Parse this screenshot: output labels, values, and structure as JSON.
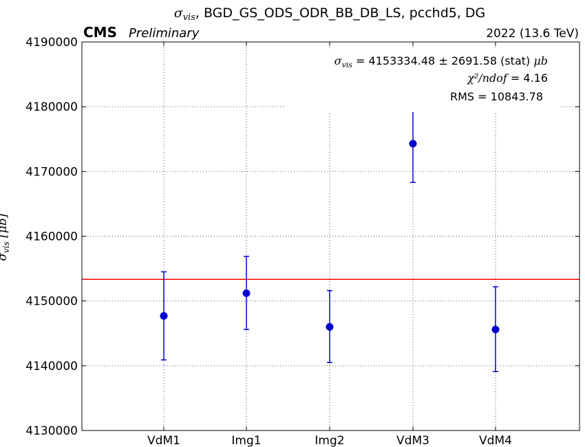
{
  "chart_data": {
    "type": "scatter",
    "title_symbol": "σ",
    "title_symbol_sub": "vis",
    "title_rest": ", BGD_GS_ODS_ODR_BB_DB_LS, pcchd5, DG",
    "cms_label": "CMS",
    "cms_sublabel": "Preliminary",
    "energy_label": "2022 (13.6 TeV)",
    "ylabel_symbol": "σ",
    "ylabel_sub": "vis",
    "ylabel_unit": "[μb]",
    "ylim": [
      4130000,
      4190000
    ],
    "yticks": [
      4130000,
      4140000,
      4150000,
      4160000,
      4170000,
      4180000,
      4190000
    ],
    "ytick_labels": [
      "4130000",
      "4140000",
      "4150000",
      "4160000",
      "4170000",
      "4180000",
      "4190000"
    ],
    "categories": [
      "VdM1",
      "Img1",
      "Img2",
      "VdM3",
      "VdM4"
    ],
    "values": [
      4147700,
      4151200,
      4146000,
      4174300,
      4145600
    ],
    "err_low": [
      4140900,
      4145600,
      4140500,
      4168300,
      4139100
    ],
    "err_high": [
      4154500,
      4156900,
      4151600,
      4179700,
      4152200
    ],
    "mean_line": 4153334.48,
    "mean_line_color": "#ff0000",
    "marker_color": "#0000cc",
    "grid": true,
    "annotation": {
      "sigma_value": "4153334.48",
      "pm": "±",
      "stat_err": "2691.58",
      "stat_label": "(stat)",
      "unit": "μb",
      "chi2_label": "χ²/ndof",
      "chi2_value": "4.16",
      "rms_label": "RMS",
      "rms_value": "10843.78"
    }
  }
}
